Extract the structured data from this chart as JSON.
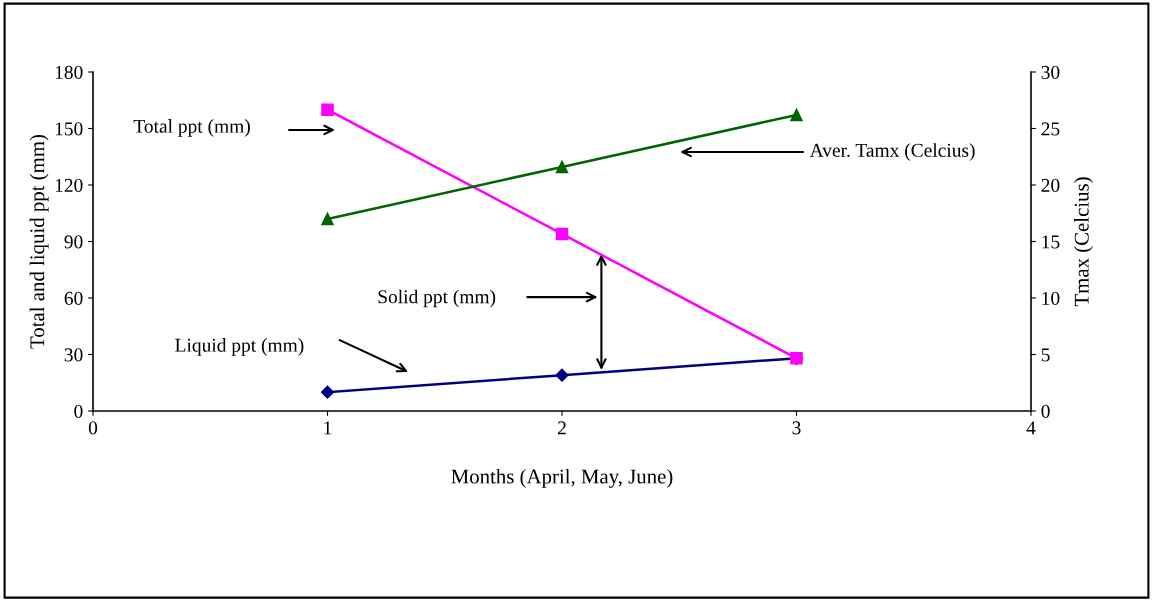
{
  "chart_data": {
    "type": "line",
    "xlabel": "Months (April, May, June)",
    "ylabel": "Total and liquid ppt (mm)",
    "y2label": "Tmax (Celcius)",
    "x": [
      1,
      2,
      3
    ],
    "series": [
      {
        "color": "#ff00ff",
        "values": [
          160,
          94,
          28
        ],
        "marker": "square"
      },
      {
        "color": "#000080",
        "values": [
          10,
          19,
          28
        ],
        "marker": "diamond"
      },
      {
        "color": "#006400",
        "values": [
          17.0,
          21.6,
          26.2
        ],
        "marker": "triangle",
        "axis": "y2"
      }
    ],
    "annotations": [
      "Total ppt (mm)",
      "Aver. Tamx (Celcius)",
      "Solid ppt (mm)",
      "Liquid ppt (mm)"
    ],
    "xlim": [
      0,
      4
    ],
    "xticks": [
      0,
      1,
      2,
      3,
      4
    ],
    "ylim": [
      0,
      180
    ],
    "yticks": [
      0,
      30,
      60,
      90,
      120,
      150,
      180
    ],
    "y2lim": [
      0,
      30
    ],
    "y2ticks": [
      0,
      5,
      10,
      15,
      20,
      25,
      30
    ],
    "grid": false,
    "legend": false,
    "line_style": "solid"
  }
}
